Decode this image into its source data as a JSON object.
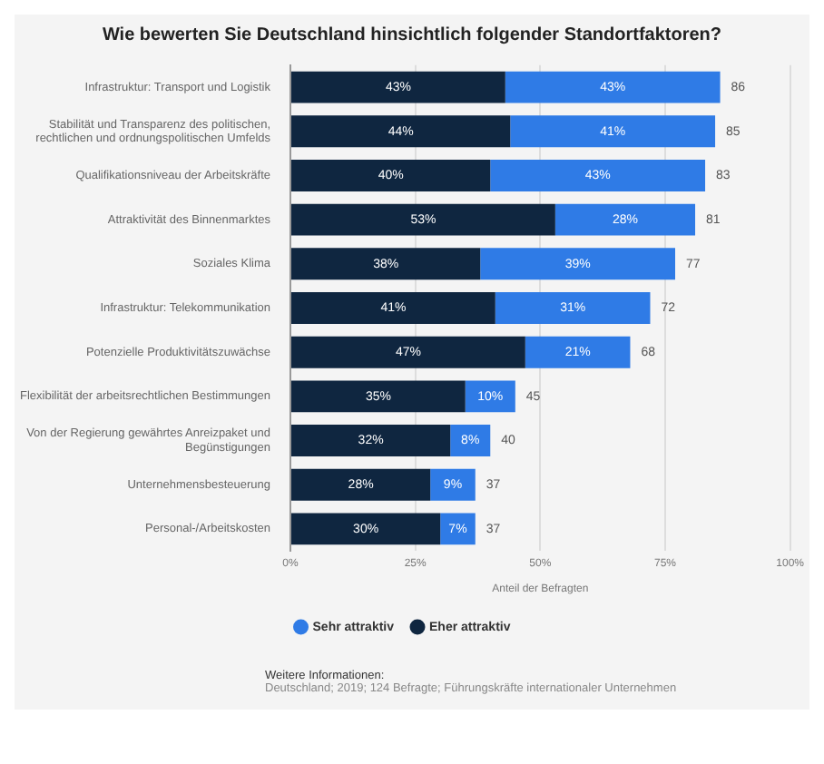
{
  "chart_data": {
    "type": "bar",
    "orientation": "horizontal",
    "stacked": true,
    "title": "Wie bewerten Sie Deutschland hinsichtlich folgender Standortfaktoren?",
    "xlabel": "Anteil der Befragten",
    "categories": [
      "Infrastruktur: Transport und Logistik",
      "Stabilität und Transparenz des politischen, rechtlichen und ordnungspolitischen Umfelds",
      "Qualifikationsniveau der Arbeitskräfte",
      "Attraktivität des Binnenmarktes",
      "Soziales Klima",
      "Infrastruktur: Telekommunikation",
      "Potenzielle Produktivitätszuwächse",
      "Flexibilität der arbeitsrechtlichen Bestimmungen",
      "Von der Regierung gewährtes Anreizpaket und Begünstigungen",
      "Unternehmensbesteuerung",
      "Personal-/Arbeitskosten"
    ],
    "series": [
      {
        "name": "Eher attraktiv",
        "color": "#0f2640",
        "values": [
          43,
          44,
          40,
          53,
          38,
          41,
          47,
          35,
          32,
          28,
          30
        ],
        "value_labels": [
          "43%",
          "44%",
          "40%",
          "53%",
          "38%",
          "41%",
          "47%",
          "35%",
          "32%",
          "28%",
          "30%"
        ]
      },
      {
        "name": "Sehr attraktiv",
        "color": "#2f7be6",
        "values": [
          43,
          41,
          43,
          28,
          39,
          31,
          21,
          10,
          8,
          9,
          7
        ],
        "value_labels": [
          "43%",
          "41%",
          "43%",
          "28%",
          "39%",
          "31%",
          "21%",
          "10%",
          "8%",
          "9%",
          "7%"
        ]
      }
    ],
    "totals": [
      "86",
      "85",
      "83",
      "81",
      "77",
      "72",
      "68",
      "45",
      "40",
      "37",
      "37"
    ],
    "xlim": [
      0,
      100
    ],
    "xticks": [
      {
        "value": 0,
        "label": "0%"
      },
      {
        "value": 25,
        "label": "25%"
      },
      {
        "value": 50,
        "label": "50%"
      },
      {
        "value": 75,
        "label": "75%"
      },
      {
        "value": 100,
        "label": "100%"
      }
    ],
    "grid": "x",
    "legend": "bottom",
    "annotations": [
      "Weitere Informationen:",
      "Deutschland; 2019; 124 Befragte; Führungskräfte internationaler Unternehmen"
    ]
  }
}
